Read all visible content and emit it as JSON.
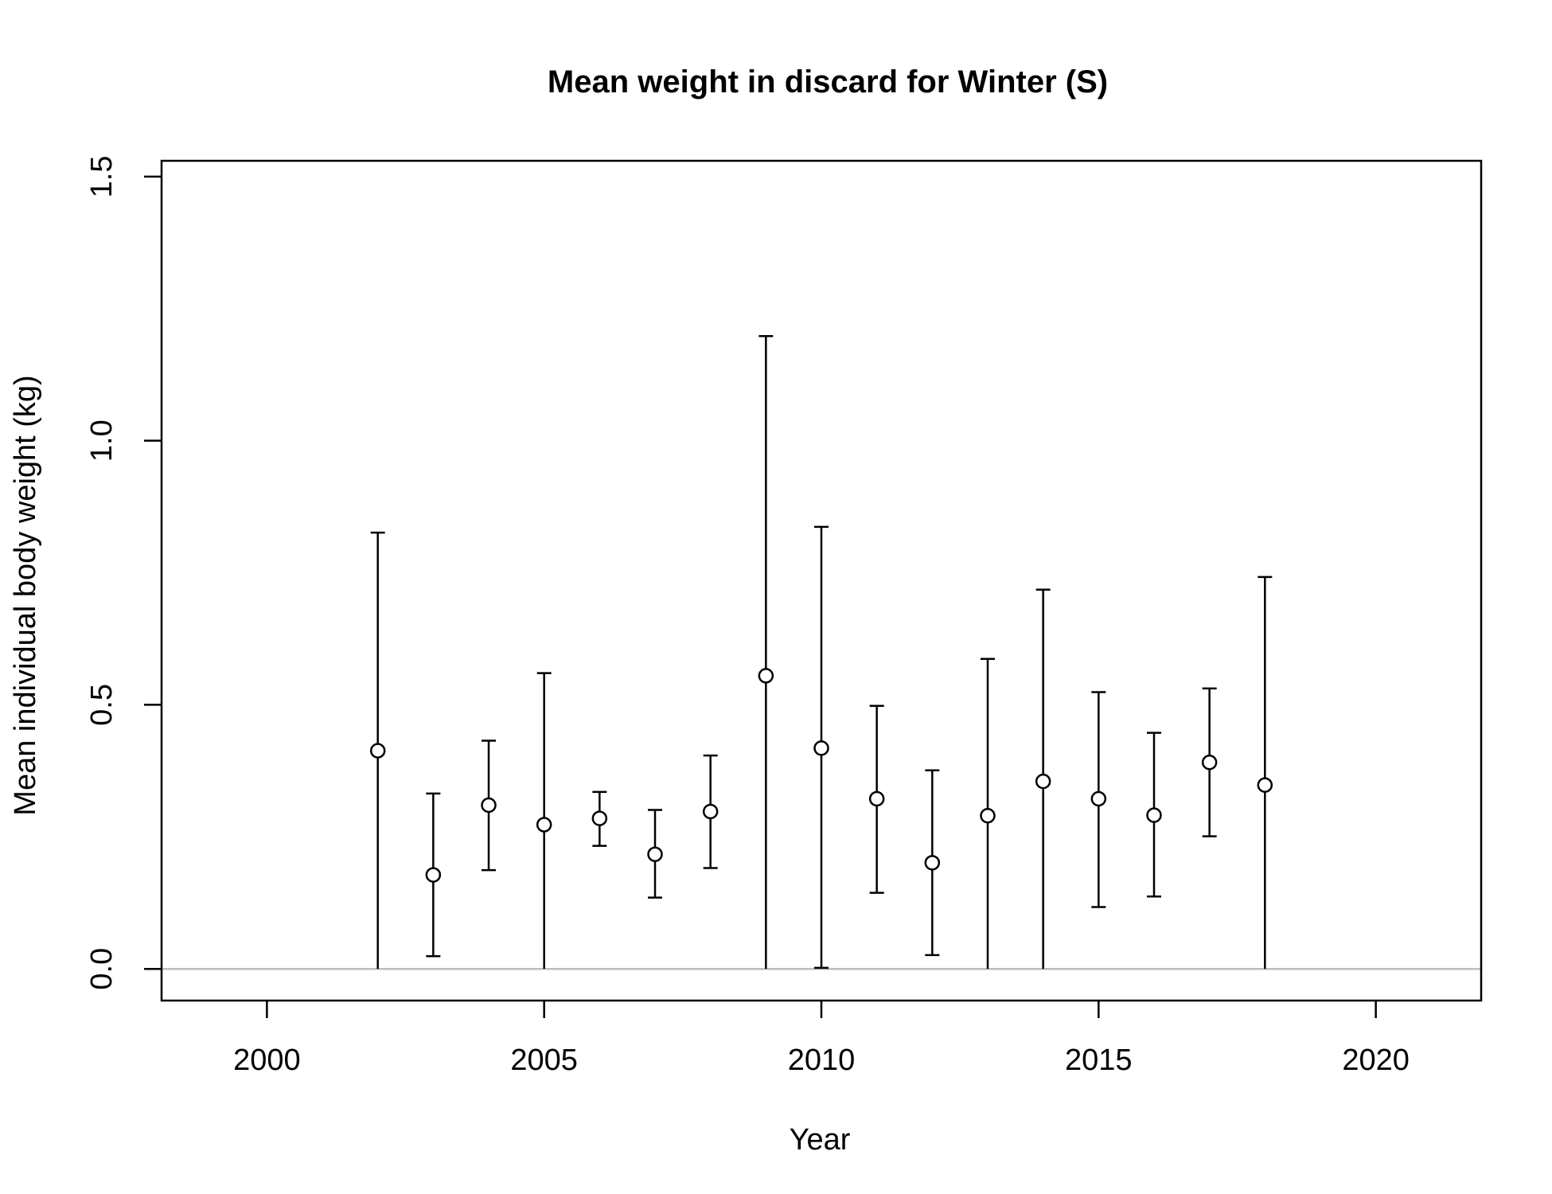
{
  "chart_data": {
    "type": "scatter",
    "title": "Mean weight in discard for Winter (S)",
    "xlabel": "Year",
    "ylabel": "Mean individual body weight (kg)",
    "xlim": [
      1998.1,
      2021.9
    ],
    "ylim": [
      -0.06,
      1.53
    ],
    "x_ticks": [
      "2000",
      "2005",
      "2010",
      "2015",
      "2020"
    ],
    "y_ticks": [
      "0.0",
      "0.5",
      "1.0",
      "1.5"
    ],
    "reference_line": {
      "y": 0,
      "color": "#bebebe"
    },
    "series": [
      {
        "marker": "open-circle",
        "color": "#000000",
        "points": [
          {
            "x": 2002,
            "y": 0.413,
            "lower": 0.0,
            "upper": 0.826
          },
          {
            "x": 2003,
            "y": 0.178,
            "lower": 0.024,
            "upper": 0.332
          },
          {
            "x": 2004,
            "y": 0.31,
            "lower": 0.187,
            "upper": 0.432
          },
          {
            "x": 2005,
            "y": 0.273,
            "lower": 0.0,
            "upper": 0.56
          },
          {
            "x": 2006,
            "y": 0.285,
            "lower": 0.233,
            "upper": 0.335
          },
          {
            "x": 2007,
            "y": 0.217,
            "lower": 0.135,
            "upper": 0.301
          },
          {
            "x": 2008,
            "y": 0.298,
            "lower": 0.191,
            "upper": 0.404
          },
          {
            "x": 2009,
            "y": 0.555,
            "lower": 0.0,
            "upper": 1.198
          },
          {
            "x": 2010,
            "y": 0.418,
            "lower": 0.002,
            "upper": 0.837
          },
          {
            "x": 2011,
            "y": 0.322,
            "lower": 0.144,
            "upper": 0.498
          },
          {
            "x": 2012,
            "y": 0.201,
            "lower": 0.026,
            "upper": 0.376
          },
          {
            "x": 2013,
            "y": 0.29,
            "lower": 0.0,
            "upper": 0.587
          },
          {
            "x": 2014,
            "y": 0.355,
            "lower": 0.0,
            "upper": 0.718
          },
          {
            "x": 2015,
            "y": 0.322,
            "lower": 0.117,
            "upper": 0.524
          },
          {
            "x": 2016,
            "y": 0.291,
            "lower": 0.137,
            "upper": 0.447
          },
          {
            "x": 2017,
            "y": 0.391,
            "lower": 0.251,
            "upper": 0.531
          },
          {
            "x": 2018,
            "y": 0.348,
            "lower": 0.0,
            "upper": 0.742
          }
        ]
      }
    ]
  }
}
